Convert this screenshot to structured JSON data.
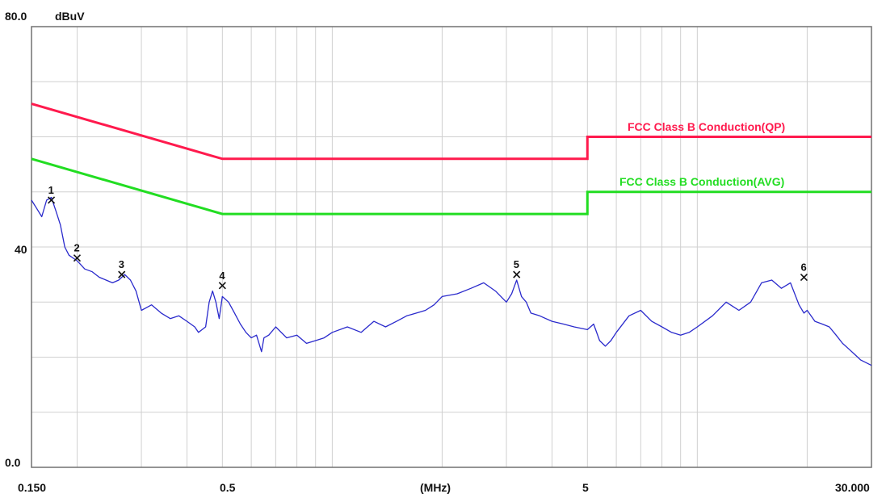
{
  "chart_data": {
    "type": "line",
    "x_scale": "log",
    "xlim": [
      0.15,
      30
    ],
    "ylim": [
      0,
      80
    ],
    "y_top_label": "80.0",
    "y_unit_label": "dBuV",
    "y_mid_label": "40",
    "y_bottom_label": "0.0",
    "x_tick_labels": [
      {
        "value": 0.15,
        "text": "0.150"
      },
      {
        "value": 0.5,
        "text": "0.5"
      },
      {
        "value": 5,
        "text": "5"
      },
      {
        "value": 30,
        "text": "30.000"
      }
    ],
    "x_unit_label": "(MHz)",
    "grid": true,
    "colors": {
      "qp": "#ff1a4d",
      "avg": "#22dd22",
      "trace": "#2a2acc",
      "frame": "#707070",
      "grid": "#d0d0d0"
    },
    "limit_lines": [
      {
        "name": "FCC Class B Conduction(QP)",
        "points": [
          [
            0.15,
            66
          ],
          [
            0.5,
            56
          ],
          [
            5,
            56
          ],
          [
            5,
            60
          ],
          [
            30,
            60
          ]
        ]
      },
      {
        "name": "FCC Class B Conduction(AVG)",
        "points": [
          [
            0.15,
            56
          ],
          [
            0.5,
            46
          ],
          [
            5,
            46
          ],
          [
            5,
            50
          ],
          [
            30,
            50
          ]
        ]
      }
    ],
    "series": [
      {
        "x": [
          0.15,
          0.155,
          0.16,
          0.165,
          0.17,
          0.175,
          0.18,
          0.185,
          0.19,
          0.2,
          0.21,
          0.22,
          0.23,
          0.24,
          0.25,
          0.26,
          0.27,
          0.28,
          0.29,
          0.3,
          0.32,
          0.34,
          0.36,
          0.38,
          0.4,
          0.42,
          0.43,
          0.44,
          0.45,
          0.46,
          0.47,
          0.48,
          0.49,
          0.5,
          0.52,
          0.54,
          0.56,
          0.58,
          0.6,
          0.62,
          0.64,
          0.65,
          0.67,
          0.7,
          0.75,
          0.8,
          0.85,
          0.9,
          0.95,
          1.0,
          1.1,
          1.2,
          1.3,
          1.4,
          1.5,
          1.6,
          1.7,
          1.8,
          1.9,
          2.0,
          2.2,
          2.4,
          2.6,
          2.8,
          3.0,
          3.1,
          3.2,
          3.3,
          3.4,
          3.5,
          3.7,
          4.0,
          4.3,
          4.6,
          5.0,
          5.2,
          5.4,
          5.6,
          5.8,
          6.0,
          6.5,
          7.0,
          7.5,
          8.0,
          8.5,
          9.0,
          9.5,
          10.0,
          11.0,
          12.0,
          13.0,
          14.0,
          15.0,
          16.0,
          17.0,
          18.0,
          19.0,
          19.6,
          20.0,
          21.0,
          22.0,
          23.0,
          24.0,
          25.0,
          26.0,
          27.0,
          28.0,
          29.0,
          30.0
        ],
        "values": [
          48.5,
          47.0,
          45.5,
          48.5,
          49.0,
          46.5,
          44.0,
          40.0,
          38.5,
          37.5,
          36.0,
          35.5,
          34.5,
          34.0,
          33.5,
          34.0,
          35.0,
          34.0,
          32.0,
          28.5,
          29.5,
          28.0,
          27.0,
          27.5,
          26.5,
          25.5,
          24.5,
          25.0,
          25.5,
          30.0,
          32.0,
          30.0,
          27.0,
          31.0,
          30.0,
          28.0,
          26.0,
          24.5,
          23.5,
          24.0,
          21.0,
          23.5,
          24.0,
          25.5,
          23.5,
          24.0,
          22.5,
          23.0,
          23.5,
          24.5,
          25.5,
          24.5,
          26.5,
          25.5,
          26.5,
          27.5,
          28.0,
          28.5,
          29.5,
          31.0,
          31.5,
          32.5,
          33.5,
          32.0,
          30.0,
          31.5,
          34.0,
          31.0,
          30.0,
          28.0,
          27.5,
          26.5,
          26.0,
          25.5,
          25.0,
          26.0,
          23.0,
          22.0,
          23.0,
          24.5,
          27.5,
          28.5,
          26.5,
          25.5,
          24.5,
          24.0,
          24.5,
          25.5,
          27.5,
          30.0,
          28.5,
          30.0,
          33.5,
          34.0,
          32.5,
          33.5,
          29.5,
          28.0,
          28.5,
          26.5,
          26.0,
          25.5,
          24.0,
          22.5,
          21.5,
          20.5,
          19.5,
          19.0,
          18.5
        ]
      }
    ],
    "markers": [
      {
        "label": "1",
        "x": 0.17,
        "y": 48.5
      },
      {
        "label": "2",
        "x": 0.2,
        "y": 38.0
      },
      {
        "label": "3",
        "x": 0.265,
        "y": 35.0
      },
      {
        "label": "4",
        "x": 0.5,
        "y": 33.0
      },
      {
        "label": "5",
        "x": 3.2,
        "y": 35.0
      },
      {
        "label": "6",
        "x": 19.6,
        "y": 34.5
      }
    ]
  }
}
